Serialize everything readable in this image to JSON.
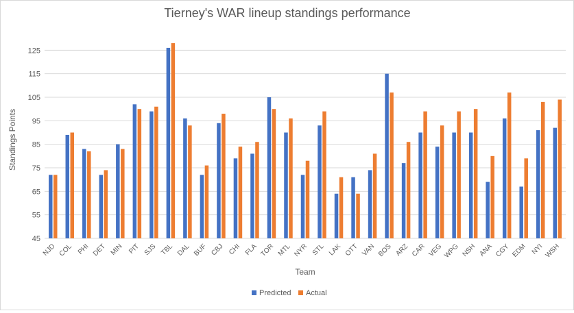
{
  "chart_data": {
    "type": "bar",
    "title": "Tierney's WAR lineup standings performance",
    "xlabel": "Team",
    "ylabel": "Standings Points",
    "ylim": [
      45,
      135
    ],
    "yticks": [
      45,
      55,
      65,
      75,
      85,
      95,
      105,
      115,
      125
    ],
    "grid": true,
    "legend_position": "bottom",
    "categories": [
      "NJD",
      "COL",
      "PHI",
      "DET",
      "MIN",
      "PIT",
      "SJS",
      "TBL",
      "DAL",
      "BUF",
      "CBJ",
      "CHI",
      "FLA",
      "TOR",
      "MTL",
      "NYR",
      "STL",
      "LAK",
      "OTT",
      "VAN",
      "BOS",
      "ARZ",
      "CAR",
      "VEG",
      "WPG",
      "NSH",
      "ANA",
      "CGY",
      "EDM",
      "NYI",
      "WSH"
    ],
    "series": [
      {
        "name": "Predicted",
        "color": "#4472c4",
        "values": [
          72,
          89,
          83,
          72,
          85,
          102,
          99,
          126,
          96,
          72,
          94,
          79,
          81,
          105,
          90,
          72,
          93,
          64,
          71,
          74,
          115,
          77,
          90,
          84,
          90,
          90,
          69,
          96,
          67,
          91,
          92
        ]
      },
      {
        "name": "Actual",
        "color": "#ed7d31",
        "values": [
          72,
          90,
          82,
          74,
          83,
          100,
          101,
          128,
          93,
          76,
          98,
          84,
          86,
          100,
          96,
          78,
          99,
          71,
          64,
          81,
          107,
          86,
          99,
          93,
          99,
          100,
          80,
          107,
          79,
          103,
          104
        ]
      }
    ]
  }
}
